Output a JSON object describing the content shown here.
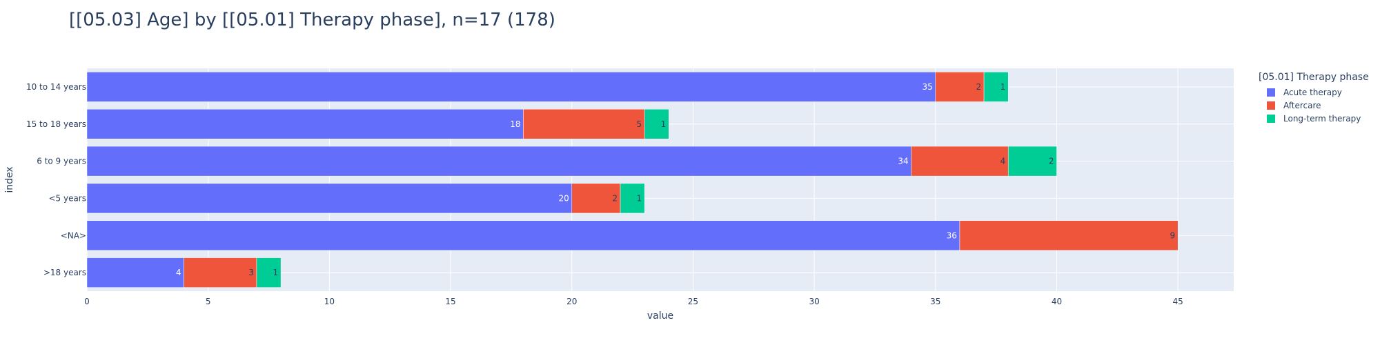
{
  "chart_data": {
    "type": "bar",
    "orientation": "horizontal",
    "barmode": "stack",
    "title": "[[05.03] Age] by [[05.01] Therapy phase], n=17 (178)",
    "xlabel": "value",
    "ylabel": "index",
    "xlim": [
      0,
      47.3
    ],
    "xticks": [
      0,
      5,
      10,
      15,
      20,
      25,
      30,
      35,
      40,
      45
    ],
    "grid": true,
    "categories": [
      "10 to 14 years",
      "15 to 18 years",
      "6 to 9 years",
      "<5 years",
      "<NA>",
      ">18 years"
    ],
    "legend_title": "[05.01] Therapy phase",
    "legend_position": "top-right",
    "series": [
      {
        "name": "Acute therapy",
        "color": "#636efa",
        "label_color": "#ffffff",
        "values": [
          35,
          18,
          34,
          20,
          36,
          4
        ]
      },
      {
        "name": "Aftercare",
        "color": "#ef553b",
        "label_color": "#2a3f5f",
        "values": [
          2,
          5,
          4,
          2,
          9,
          3
        ]
      },
      {
        "name": "Long-term therapy",
        "color": "#00cc96",
        "label_color": "#2a3f5f",
        "values": [
          1,
          1,
          2,
          1,
          null,
          1
        ]
      }
    ],
    "style": {
      "plot_bg": "#e5ecf6",
      "grid_color": "#ffffff",
      "text_color": "#2a3f5f"
    }
  }
}
